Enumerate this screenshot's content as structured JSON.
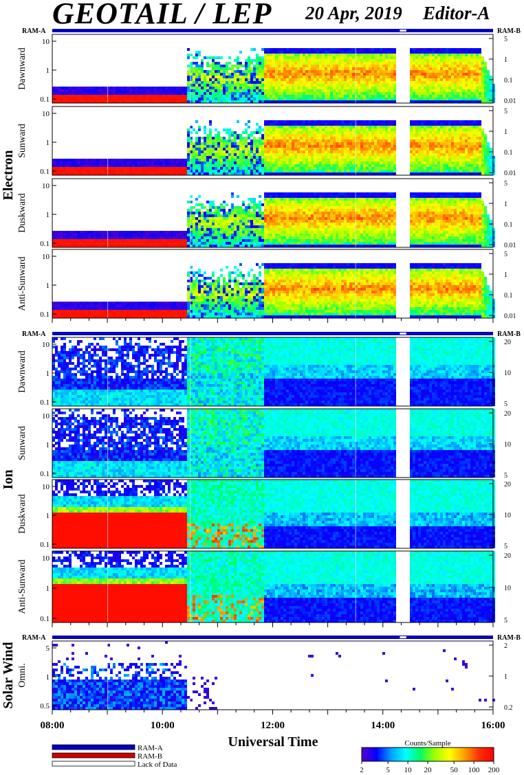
{
  "header": {
    "title": "GEOTAIL / LEP",
    "date": "20 Apr, 2019",
    "editor": "Editor-A"
  },
  "chart_data": {
    "type": "heatmap",
    "x_axis": {
      "label": "Universal Time",
      "range": [
        "08:00",
        "16:00"
      ],
      "tick_labels": [
        "08:00",
        "10:00",
        "12:00",
        "14:00",
        "16:00"
      ]
    },
    "ram_labels": {
      "a": "RAM-A",
      "b": "RAM-B"
    },
    "colorbar": {
      "label": "Counts/Sample",
      "ticks": [
        "2",
        "5",
        "10",
        "20",
        "50",
        "100",
        "200"
      ],
      "scale": "log",
      "range": [
        2,
        200
      ],
      "colors": [
        "#5a00d0",
        "#0000ff",
        "#00a0ff",
        "#00ffff",
        "#00ff60",
        "#a0ff00",
        "#ffff00",
        "#ffa000",
        "#ff3000",
        "#ff0000"
      ]
    },
    "legend": [
      {
        "label": "RAM-A",
        "color": "#0000c0"
      },
      {
        "label": "RAM-B",
        "color": "#d00000"
      },
      {
        "label": "Lack of Data",
        "color": "#ffffff"
      }
    ],
    "groups": [
      {
        "name": "Electron",
        "panels": [
          {
            "label": "Dawnward",
            "left_ticks": [
              "10",
              "1",
              "0.1"
            ],
            "right_ticks": [
              "5",
              "1",
              "0.1",
              "0.01"
            ]
          },
          {
            "label": "Sunward",
            "left_ticks": [
              "10",
              "1",
              "0.1"
            ],
            "right_ticks": [
              "5",
              "1",
              "0.1",
              "0.01"
            ]
          },
          {
            "label": "Duskward",
            "left_ticks": [
              "10",
              "1",
              "0.1"
            ],
            "right_ticks": [
              "5",
              "1",
              "0.1",
              "0.01"
            ]
          },
          {
            "label": "Anti-Sunward",
            "left_ticks": [
              "10",
              "1",
              "0.1"
            ],
            "right_ticks": [
              "5",
              "1",
              "0.1",
              "0.01"
            ]
          }
        ]
      },
      {
        "name": "Ion",
        "panels": [
          {
            "label": "Dawnward",
            "left_ticks": [
              "10",
              "1",
              "0.1"
            ],
            "right_ticks": [
              "20",
              "10",
              "5"
            ]
          },
          {
            "label": "Sunward",
            "left_ticks": [
              "10",
              "1",
              "0.1"
            ],
            "right_ticks": [
              "20",
              "10",
              "5"
            ]
          },
          {
            "label": "Duskward",
            "left_ticks": [
              "10",
              "1",
              "0.1"
            ],
            "right_ticks": [
              "20",
              "10",
              "5"
            ]
          },
          {
            "label": "Anti-Sunward",
            "left_ticks": [
              "10",
              "1",
              "0.1"
            ],
            "right_ticks": [
              "20",
              "10",
              "5"
            ]
          }
        ]
      },
      {
        "name": "Solar Wind",
        "panels": [
          {
            "label": "Omni.",
            "left_ticks": [
              "5",
              "1",
              "0.5"
            ],
            "right_ticks": [
              "2",
              "1",
              "0.2"
            ]
          }
        ]
      }
    ],
    "data_gap": {
      "start": "14:17",
      "end": "14:27"
    },
    "regimes": [
      {
        "interval": [
          "08:00",
          "10:25"
        ],
        "electron": "low energy, RAM-B red at bottom",
        "ion": "dawn/sun patchy, dusk/anti-sun saturated red"
      },
      {
        "interval": [
          "10:25",
          "11:50"
        ],
        "electron": "striated vertical structures",
        "ion": "turbulent transition"
      },
      {
        "interval": [
          "11:50",
          "15:45"
        ],
        "electron": "broad yellow-orange band 0.2–5 keV",
        "ion": "green band with blue below"
      },
      {
        "interval": [
          "15:45",
          "16:00"
        ],
        "electron": "decreasing dropout",
        "ion": "narrowing"
      }
    ]
  }
}
